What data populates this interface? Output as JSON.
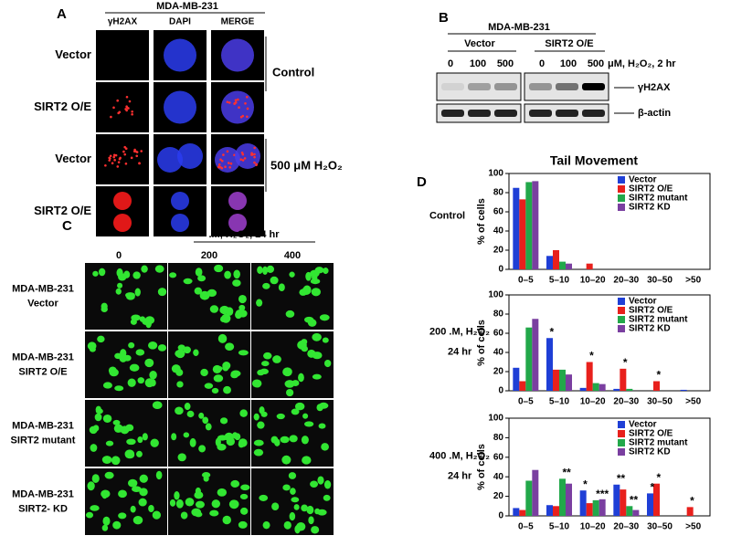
{
  "panel_a": {
    "label": "A",
    "header": "MDA-MB-231",
    "columns": [
      "γH2AX",
      "DAPI",
      "MERGE"
    ],
    "rows": [
      "Vector",
      "SIRT2 O/E",
      "Vector",
      "SIRT2 O/E"
    ],
    "groups": [
      "Control",
      "500 μM H₂O₂"
    ]
  },
  "panel_b": {
    "label": "B",
    "header": "MDA-MB-231",
    "groups": [
      "Vector",
      "SIRT2 O/E"
    ],
    "lanes": [
      "0",
      "100",
      "500",
      "0",
      "100",
      "500"
    ],
    "treatment": "μM, H₂O₂, 2 hr",
    "blots": [
      "γH2AX",
      "β-actin"
    ]
  },
  "panel_c": {
    "label": "C",
    "treatment": ".M, H₂O₂, 24 hr",
    "columns": [
      "0",
      "200",
      "400"
    ],
    "rows": [
      [
        "MDA-MB-231",
        "Vector"
      ],
      [
        "MDA-MB-231",
        "SIRT2 O/E"
      ],
      [
        "MDA-MB-231",
        "SIRT2 mutant"
      ],
      [
        "MDA-MB-231",
        "SIRT2- KD"
      ]
    ]
  },
  "panel_d": {
    "label": "D",
    "title": "Tail Movement"
  },
  "chart_data": [
    {
      "type": "bar",
      "condition": [
        "Control"
      ],
      "ylabel": "% of cells",
      "categories": [
        "0–5",
        "5–10",
        "10–20",
        "20–30",
        "30–50",
        ">50"
      ],
      "series": [
        {
          "name": "Vector",
          "color": "#1f3fd6",
          "values": [
            85,
            14,
            0,
            0,
            0,
            0
          ]
        },
        {
          "name": "SIRT2 O/E",
          "color": "#e8201c",
          "values": [
            73,
            20,
            6,
            0,
            0,
            0
          ]
        },
        {
          "name": "SIRT2 mutant",
          "color": "#22a84a",
          "values": [
            91,
            8,
            0,
            0,
            0,
            0
          ]
        },
        {
          "name": "SIRT2 KD",
          "color": "#7a3fa0",
          "values": [
            92,
            6,
            0,
            0,
            0,
            0
          ]
        }
      ],
      "ylim": [
        0,
        100
      ],
      "yticks": [
        0,
        20,
        40,
        60,
        80,
        100
      ],
      "annotations": []
    },
    {
      "type": "bar",
      "condition": [
        "200 .M, H₂O₂",
        "24 hr"
      ],
      "ylabel": "% of cells",
      "categories": [
        "0–5",
        "5–10",
        "10–20",
        "20–30",
        "30–50",
        ">50"
      ],
      "series": [
        {
          "name": "Vector",
          "color": "#1f3fd6",
          "values": [
            24,
            55,
            3,
            2,
            0,
            1
          ]
        },
        {
          "name": "SIRT2 O/E",
          "color": "#e8201c",
          "values": [
            10,
            22,
            30,
            23,
            10,
            0
          ]
        },
        {
          "name": "SIRT2 mutant",
          "color": "#22a84a",
          "values": [
            66,
            22,
            8,
            2,
            0,
            0
          ]
        },
        {
          "name": "SIRT2 KD",
          "color": "#7a3fa0",
          "values": [
            75,
            17,
            7,
            0,
            0,
            0
          ]
        }
      ],
      "ylim": [
        0,
        100
      ],
      "yticks": [
        0,
        20,
        40,
        60,
        80,
        100
      ],
      "annotations": [
        {
          "text": "*",
          "series": 0,
          "category": 1
        },
        {
          "text": "*",
          "series": 1,
          "category": 2
        },
        {
          "text": "*",
          "series": 1,
          "category": 3
        },
        {
          "text": "*",
          "series": 1,
          "category": 4
        }
      ]
    },
    {
      "type": "bar",
      "condition": [
        "400 .M, H₂O₂",
        "24 hr"
      ],
      "ylabel": "% of cells",
      "categories": [
        "0–5",
        "5–10",
        "10–20",
        "20–30",
        "30–50",
        ">50"
      ],
      "series": [
        {
          "name": "Vector",
          "color": "#1f3fd6",
          "values": [
            8,
            11,
            26,
            32,
            23,
            0
          ]
        },
        {
          "name": "SIRT2 O/E",
          "color": "#e8201c",
          "values": [
            6,
            10,
            13,
            27,
            33,
            9
          ]
        },
        {
          "name": "SIRT2 mutant",
          "color": "#22a84a",
          "values": [
            36,
            38,
            16,
            10,
            0,
            0
          ]
        },
        {
          "name": "SIRT2 KD",
          "color": "#7a3fa0",
          "values": [
            47,
            33,
            17,
            6,
            0,
            0
          ]
        }
      ],
      "ylim": [
        0,
        100
      ],
      "yticks": [
        0,
        20,
        40,
        60,
        80,
        100
      ],
      "annotations": [
        {
          "text": "**",
          "series": 2,
          "category": 1
        },
        {
          "text": "*",
          "series": 0,
          "category": 2
        },
        {
          "text": "***",
          "series": 2,
          "category": 2
        },
        {
          "text": "**",
          "series": 0,
          "category": 3
        },
        {
          "text": "**",
          "series": 2,
          "category": 3
        },
        {
          "text": "*",
          "series": 0,
          "category": 4
        },
        {
          "text": "*",
          "series": 1,
          "category": 4
        },
        {
          "text": "*",
          "series": 1,
          "category": 5
        }
      ]
    }
  ]
}
